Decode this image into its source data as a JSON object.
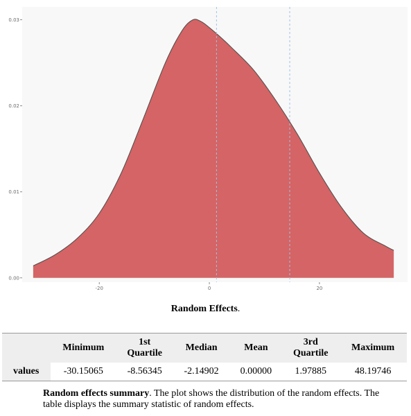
{
  "chart_data": {
    "type": "area",
    "x": [
      -32,
      -28,
      -24,
      -20,
      -16,
      -12,
      -8,
      -5,
      -3,
      -1.5,
      0,
      2,
      4,
      8,
      12,
      16,
      20,
      24,
      28,
      32,
      33.5
    ],
    "y": [
      0.0014,
      0.0027,
      0.0046,
      0.0075,
      0.0122,
      0.0185,
      0.025,
      0.0287,
      0.03,
      0.0298,
      0.0291,
      0.028,
      0.0268,
      0.0242,
      0.0207,
      0.0167,
      0.0122,
      0.0082,
      0.0052,
      0.0037,
      0.0032
    ],
    "xlim": [
      -34,
      36
    ],
    "ylim": [
      -0.0005,
      0.0315
    ],
    "xticks": [
      -20,
      0,
      20
    ],
    "xtick_labels": [
      "-20",
      "0",
      "20"
    ],
    "yticks": [
      0.0,
      0.01,
      0.02,
      0.03
    ],
    "ytick_labels": [
      "0.00",
      "0.01",
      "0.02",
      "0.03"
    ],
    "vlines": [
      1.3,
      14.6
    ],
    "grid": false,
    "title": "",
    "xlabel": "",
    "ylabel": "",
    "fill_color": "#d46465",
    "line_color": "#4a4a4a",
    "vline_color": "#9ec3e6",
    "background": "#f8f8f8"
  },
  "caption": {
    "bold": "Random Effects",
    "rest": "."
  },
  "table": {
    "headers": [
      "",
      "Minimum",
      "1st Quartile",
      "Median",
      "Mean",
      "3rd Quartile",
      "Maximum"
    ],
    "row": {
      "label": "values",
      "cells": [
        "-30.15065",
        "-8.56345",
        "-2.14902",
        "0.00000",
        "1.97885",
        "48.19746"
      ]
    }
  },
  "note": {
    "bold": "Random effects summary",
    "rest": ". The plot shows the distribution of the random effects. The table displays the summary statistic of random effects."
  }
}
